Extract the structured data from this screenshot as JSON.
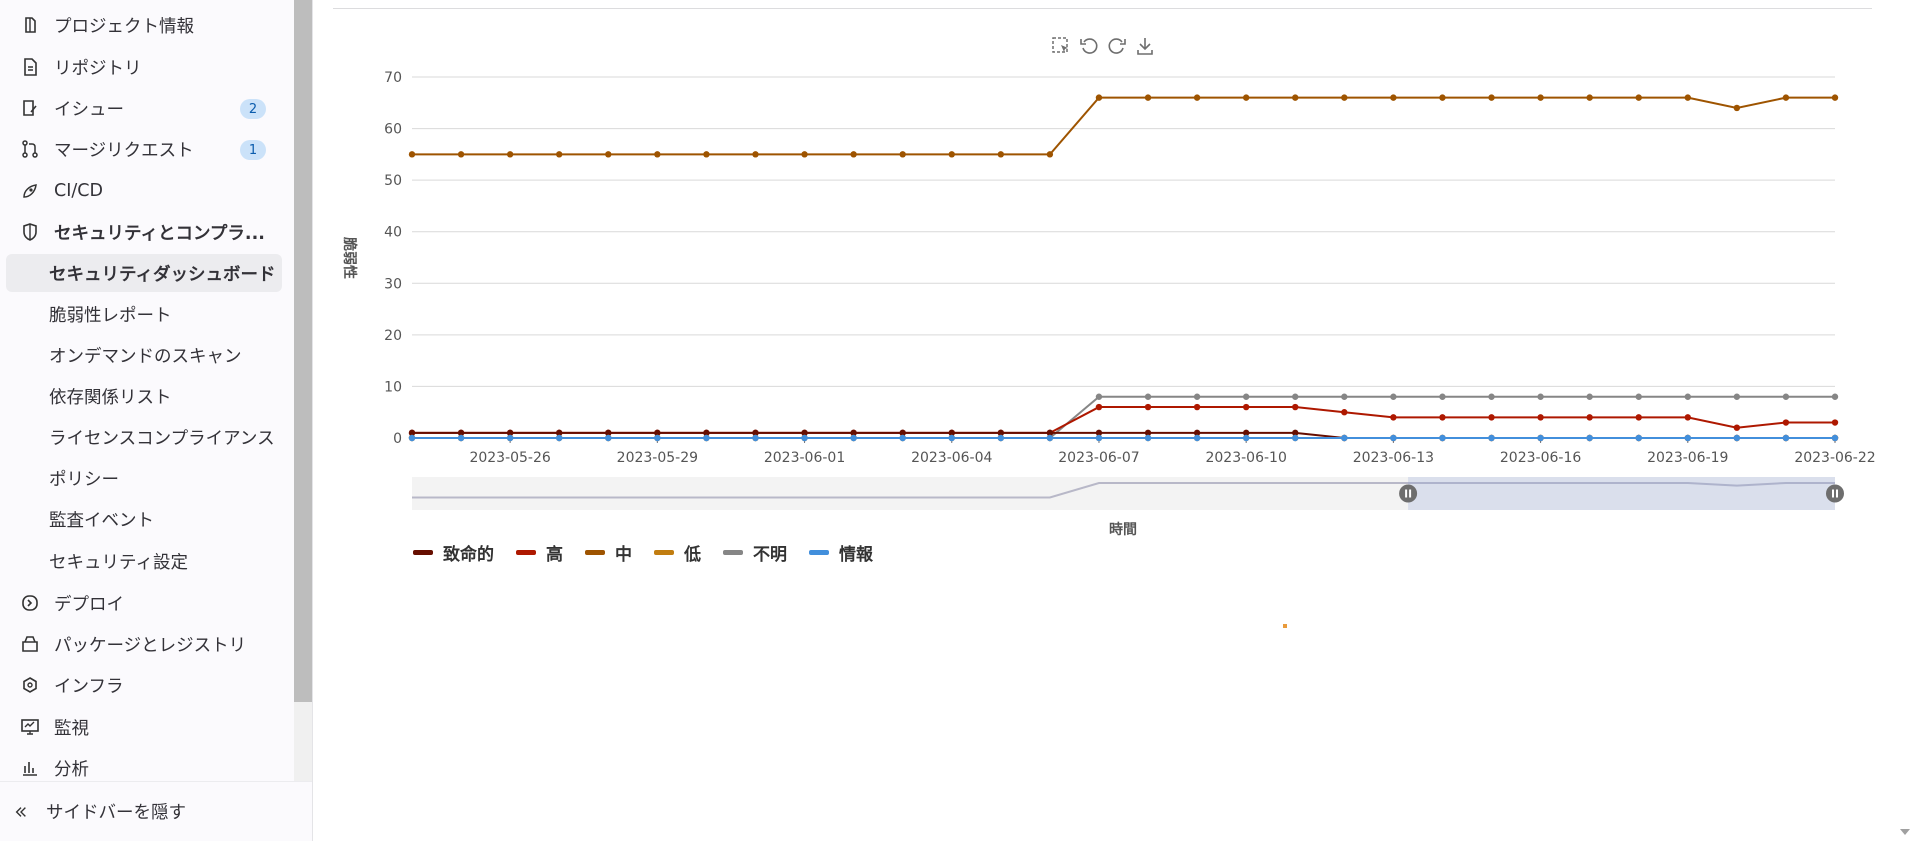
{
  "sidebar": {
    "items": [
      {
        "label": "プロジェクト情報",
        "icon": "project-info-icon"
      },
      {
        "label": "リポジトリ",
        "icon": "repository-icon"
      },
      {
        "label": "イシュー",
        "icon": "issues-icon",
        "badge": "2"
      },
      {
        "label": "マージリクエスト",
        "icon": "merge-request-icon",
        "badge": "1"
      },
      {
        "label": "CI/CD",
        "icon": "rocket-icon"
      },
      {
        "label": "セキュリティとコンプラ...",
        "icon": "shield-icon"
      },
      {
        "label": "セキュリティダッシュボード"
      },
      {
        "label": "脆弱性レポート"
      },
      {
        "label": "オンデマンドのスキャン"
      },
      {
        "label": "依存関係リスト"
      },
      {
        "label": "ライセンスコンプライアンス"
      },
      {
        "label": "ポリシー"
      },
      {
        "label": "監査イベント"
      },
      {
        "label": "セキュリティ設定"
      },
      {
        "label": "デプロイ",
        "icon": "deploy-icon"
      },
      {
        "label": "パッケージとレジストリ",
        "icon": "package-icon"
      },
      {
        "label": "インフラ",
        "icon": "infrastructure-icon"
      },
      {
        "label": "監視",
        "icon": "monitor-icon"
      },
      {
        "label": "分析",
        "icon": "analytics-icon"
      }
    ],
    "hide_label": "サイドバーを隠す"
  },
  "toolbox": [
    "zoom-select-icon",
    "undo-zoom-icon",
    "restore-icon",
    "download-icon"
  ],
  "colors": {
    "critical": "#660e00",
    "high": "#ae1800",
    "medium": "#9e5400",
    "low": "#c17d10",
    "unknown": "#868686",
    "info": "#428fdc"
  },
  "chart_data": {
    "type": "line",
    "xlabel": "時間",
    "ylabel": "脆弱性",
    "ylim": [
      0,
      70
    ],
    "yticks": [
      0,
      10,
      20,
      30,
      40,
      50,
      60,
      70
    ],
    "x": [
      "2023-05-24",
      "2023-05-25",
      "2023-05-26",
      "2023-05-27",
      "2023-05-28",
      "2023-05-29",
      "2023-05-30",
      "2023-05-31",
      "2023-06-01",
      "2023-06-02",
      "2023-06-03",
      "2023-06-04",
      "2023-06-05",
      "2023-06-06",
      "2023-06-07",
      "2023-06-08",
      "2023-06-09",
      "2023-06-10",
      "2023-06-11",
      "2023-06-12",
      "2023-06-13",
      "2023-06-14",
      "2023-06-15",
      "2023-06-16",
      "2023-06-17",
      "2023-06-18",
      "2023-06-19",
      "2023-06-20",
      "2023-06-21",
      "2023-06-22"
    ],
    "xtick_labels": [
      "2023-05-26",
      "2023-05-29",
      "2023-06-01",
      "2023-06-04",
      "2023-06-07",
      "2023-06-10",
      "2023-06-13",
      "2023-06-16",
      "2023-06-19",
      "2023-06-22"
    ],
    "legend_position": "bottom-left",
    "series": [
      {
        "name": "致命的",
        "color_key": "critical",
        "values": [
          1,
          1,
          1,
          1,
          1,
          1,
          1,
          1,
          1,
          1,
          1,
          1,
          1,
          1,
          1,
          1,
          1,
          1,
          1,
          0,
          0,
          0,
          0,
          0,
          0,
          0,
          0,
          0,
          0,
          0
        ]
      },
      {
        "name": "高",
        "color_key": "high",
        "values": [
          1,
          1,
          1,
          1,
          1,
          1,
          1,
          1,
          1,
          1,
          1,
          1,
          1,
          1,
          6,
          6,
          6,
          6,
          6,
          5,
          4,
          4,
          4,
          4,
          4,
          4,
          4,
          2,
          3,
          3
        ]
      },
      {
        "name": "中",
        "color_key": "medium",
        "values": [
          55,
          55,
          55,
          55,
          55,
          55,
          55,
          55,
          55,
          55,
          55,
          55,
          55,
          55,
          66,
          66,
          66,
          66,
          66,
          66,
          66,
          66,
          66,
          66,
          66,
          66,
          66,
          64,
          66,
          66
        ]
      },
      {
        "name": "低",
        "color_key": "low",
        "values": [
          0,
          0,
          0,
          0,
          0,
          0,
          0,
          0,
          0,
          0,
          0,
          0,
          0,
          0,
          0,
          0,
          0,
          0,
          0,
          0,
          0,
          0,
          0,
          0,
          0,
          0,
          0,
          0,
          0,
          0
        ]
      },
      {
        "name": "不明",
        "color_key": "unknown",
        "values": [
          0,
          0,
          0,
          0,
          0,
          0,
          0,
          0,
          0,
          0,
          0,
          0,
          0,
          0,
          8,
          8,
          8,
          8,
          8,
          8,
          8,
          8,
          8,
          8,
          8,
          8,
          8,
          8,
          8,
          8
        ]
      },
      {
        "name": "情報",
        "color_key": "info",
        "values": [
          0,
          0,
          0,
          0,
          0,
          0,
          0,
          0,
          0,
          0,
          0,
          0,
          0,
          0,
          0,
          0,
          0,
          0,
          0,
          0,
          0,
          0,
          0,
          0,
          0,
          0,
          0,
          0,
          0,
          0
        ]
      }
    ],
    "zoom_window": [
      0.7,
      1.0
    ]
  }
}
